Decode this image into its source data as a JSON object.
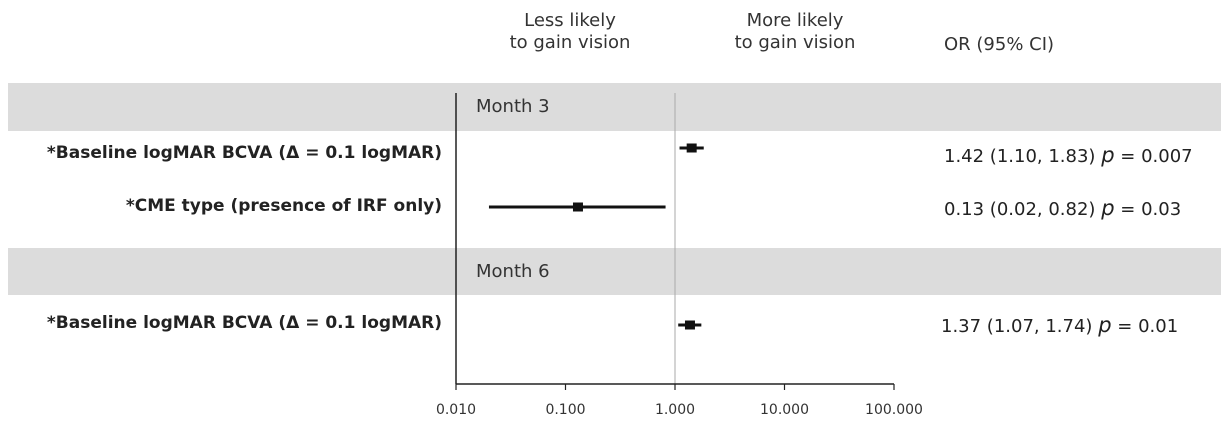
{
  "header": {
    "less": [
      "Less likely",
      "to gain vision"
    ],
    "more": [
      "More likely",
      "to gain vision"
    ],
    "or": "OR (95% CI)"
  },
  "sections": [
    "Month 3",
    "Month 6"
  ],
  "chart_data": {
    "type": "forest",
    "x_scale": "log",
    "xlim": [
      0.01,
      100
    ],
    "reference_line": 1,
    "x_ticks": [
      "0.010",
      "0.100",
      "1.000",
      "10.000",
      "100.000"
    ],
    "rows": [
      {
        "section": "Month 3",
        "label": "*Baseline logMAR BCVA (Δ = 0.1 logMAR)",
        "or": 1.42,
        "lo": 1.1,
        "hi": 1.83,
        "ci_text": "1.42 (1.10, 1.83)",
        "p_label": "p",
        "p_value": "= 0.007"
      },
      {
        "section": "Month 3",
        "label": "*CME type (presence of IRF only)",
        "or": 0.13,
        "lo": 0.02,
        "hi": 0.82,
        "ci_text": "0.13 (0.02, 0.82)",
        "p_label": "p",
        "p_value": "= 0.03"
      },
      {
        "section": "Month 6",
        "label": "*Baseline logMAR BCVA (Δ = 0.1 logMAR)",
        "or": 1.37,
        "lo": 1.07,
        "hi": 1.74,
        "ci_text": "1.37 (1.07, 1.74)",
        "p_label": "p",
        "p_value": "= 0.01"
      }
    ]
  }
}
